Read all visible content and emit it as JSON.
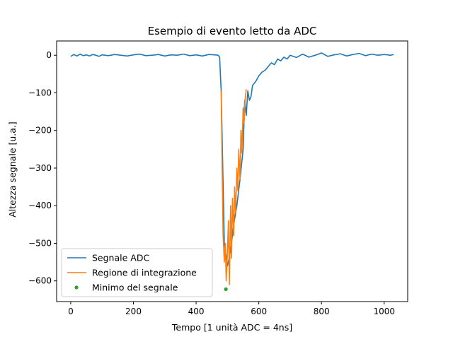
{
  "chart_data": {
    "type": "line",
    "title": "Esempio di evento letto da ADC",
    "xlabel": "Tempo [1 unità ADC = 4ns]",
    "ylabel": "Altezza segnale [u.a.]",
    "xlim": [
      -45,
      1075
    ],
    "ylim": [
      -655,
      38
    ],
    "xticks": [
      0,
      200,
      400,
      600,
      800,
      1000
    ],
    "yticks": [
      0,
      -100,
      -200,
      -300,
      -400,
      -500,
      -600
    ],
    "legend_position": "lower-left",
    "series": [
      {
        "name": "Segnale ADC",
        "color": "#1f77b4",
        "x": [
          0,
          10,
          20,
          30,
          40,
          50,
          60,
          70,
          80,
          90,
          100,
          120,
          140,
          160,
          180,
          200,
          220,
          240,
          260,
          280,
          300,
          320,
          340,
          360,
          380,
          400,
          420,
          440,
          460,
          470,
          475,
          478,
          480,
          490,
          500,
          510,
          520,
          530,
          540,
          550,
          555,
          560,
          565,
          570,
          575,
          580,
          590,
          600,
          610,
          620,
          630,
          640,
          650,
          660,
          670,
          680,
          690,
          700,
          720,
          740,
          760,
          780,
          800,
          820,
          840,
          860,
          880,
          900,
          920,
          940,
          960,
          980,
          1000,
          1020,
          1030
        ],
        "y": [
          -3,
          2,
          -2,
          3,
          -1,
          1,
          -2,
          2,
          0,
          -3,
          1,
          -1,
          2,
          0,
          -2,
          1,
          3,
          -1,
          0,
          2,
          -2,
          1,
          0,
          3,
          -1,
          1,
          -2,
          2,
          1,
          0,
          -5,
          -60,
          -95,
          -500,
          -560,
          -520,
          -450,
          -400,
          -330,
          -250,
          -120,
          -160,
          -95,
          -120,
          -110,
          -80,
          -70,
          -55,
          -45,
          -40,
          -30,
          -20,
          -25,
          -10,
          -15,
          -5,
          -10,
          0,
          -6,
          3,
          -5,
          0,
          6,
          -3,
          1,
          4,
          -2,
          2,
          5,
          -1,
          3,
          0,
          2,
          0,
          2
        ]
      },
      {
        "name": "Regione di integrazione",
        "color": "#ff7f0e",
        "x": [
          480,
          483,
          486,
          490,
          493,
          496,
          500,
          503,
          506,
          510,
          513,
          516,
          520,
          523,
          526,
          530,
          533,
          536,
          540,
          543,
          546,
          550,
          553,
          556,
          560
        ],
        "y": [
          -95,
          -300,
          -480,
          -550,
          -500,
          -600,
          -520,
          -440,
          -610,
          -400,
          -540,
          -380,
          -480,
          -350,
          -420,
          -300,
          -360,
          -250,
          -330,
          -200,
          -260,
          -140,
          -180,
          -120,
          -90
        ]
      }
    ],
    "points": [
      {
        "name": "Minimo del segnale",
        "color": "#2ca02c",
        "x": 495,
        "y": -622
      }
    ]
  }
}
